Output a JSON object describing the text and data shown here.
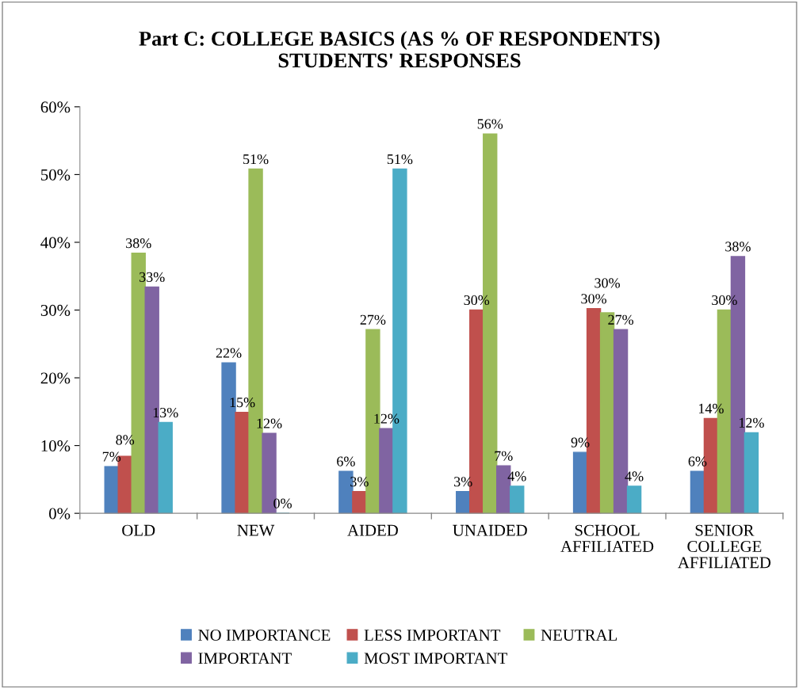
{
  "chart_data": {
    "type": "bar",
    "title": "Part C: COLLEGE BASICS (AS % OF RESPONDENTS)\nSTUDENTS' RESPONSES",
    "categories": [
      "OLD",
      "NEW",
      "AIDED",
      "UNAIDED",
      "SCHOOL\nAFFILIATED",
      "SENIOR\nCOLLEGE\nAFFILIATED"
    ],
    "series": [
      {
        "name": "NO IMPORTANCE",
        "color": "#4f81bd",
        "values": [
          6.9,
          22.2,
          6.2,
          3.2,
          9.0,
          6.2
        ],
        "value_labels": [
          "7%",
          "22%",
          "6%",
          "3%",
          "9%",
          "6%"
        ]
      },
      {
        "name": "LESS IMPORTANT",
        "color": "#c0504d",
        "values": [
          8.4,
          14.9,
          3.2,
          30.0,
          30.2,
          14.0
        ],
        "value_labels": [
          "8%",
          "15%",
          "3%",
          "30%",
          "30%",
          "14%"
        ]
      },
      {
        "name": "NEUTRAL",
        "color": "#9bbb59",
        "values": [
          38.4,
          50.8,
          27.1,
          56.0,
          29.6,
          30.0
        ],
        "value_labels": [
          "38%",
          "51%",
          "27%",
          "56%",
          "30%",
          "30%"
        ]
      },
      {
        "name": "IMPORTANT",
        "color": "#8064a2",
        "values": [
          33.4,
          11.8,
          12.5,
          7.0,
          27.1,
          37.9
        ],
        "value_labels": [
          "33%",
          "12%",
          "12%",
          "7%",
          "27%",
          "38%"
        ]
      },
      {
        "name": "MOST IMPORTANT",
        "color": "#4bacc6",
        "values": [
          13.4,
          0,
          50.8,
          4.0,
          4.0,
          11.9
        ],
        "value_labels": [
          "13%",
          "0%",
          "51%",
          "4%",
          "4%",
          "12%"
        ]
      }
    ],
    "ylim": [
      0,
      60
    ],
    "yticks": [
      {
        "value": 0,
        "label": "0%"
      },
      {
        "value": 10,
        "label": "10%"
      },
      {
        "value": 20,
        "label": "20%"
      },
      {
        "value": 30,
        "label": "30%"
      },
      {
        "value": 40,
        "label": "40%"
      },
      {
        "value": 50,
        "label": "50%"
      },
      {
        "value": 60,
        "label": "60%"
      }
    ],
    "grid": false,
    "legend": "bottom"
  }
}
